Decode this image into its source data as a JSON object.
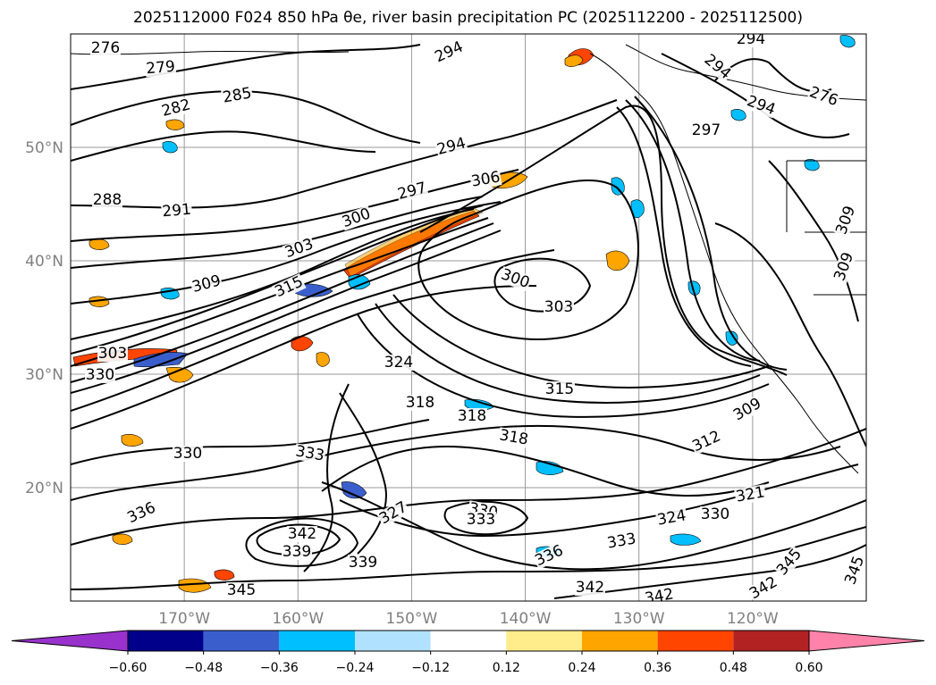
{
  "title": "2025112000 F024 850 hPa θe, river basin precipitation PC (2025112200 - 2025112500)",
  "map": {
    "projection": "PlateCarree",
    "extent": {
      "lon_min": -180,
      "lon_max": -110,
      "lat_min": 10,
      "lat_max": 60
    },
    "lat_labels": [
      "50°N",
      "40°N",
      "30°N",
      "20°N"
    ],
    "lat_values": [
      50,
      40,
      30,
      20
    ],
    "lon_labels": [
      "170°W",
      "160°W",
      "150°W",
      "140°W",
      "130°W",
      "120°W"
    ],
    "lon_values": [
      -170,
      -160,
      -150,
      -140,
      -130,
      -120
    ],
    "gridlines": true
  },
  "chart_data": {
    "type": "contour",
    "title": "2025112000 F024 850 hPa θe, river basin precipitation PC (2025112200 - 2025112500)",
    "contour_field": "850 hPa θe",
    "contour_interval": 3,
    "contour_labels": [
      276,
      279,
      282,
      285,
      288,
      291,
      294,
      297,
      300,
      303,
      306,
      309,
      312,
      315,
      318,
      321,
      324,
      327,
      330,
      333,
      336,
      339,
      342,
      345
    ],
    "fill_field": "river basin precipitation PC",
    "colorbar": {
      "orientation": "horizontal",
      "extend": "both",
      "levels": [
        -0.6,
        -0.48,
        -0.36,
        -0.24,
        -0.12,
        0.12,
        0.24,
        0.36,
        0.48,
        0.6
      ],
      "tick_labels": [
        "−0.60",
        "−0.48",
        "−0.36",
        "−0.24",
        "−0.12",
        "0.12",
        "0.24",
        "0.36",
        "0.48",
        "0.60"
      ],
      "colors": [
        "#9932CC",
        "#00008B",
        "#3A5FCD",
        "#00BFFF",
        "#B0E2FF",
        "#FFFFFF",
        "#FFEC8B",
        "#FFA500",
        "#FF4500",
        "#B22222",
        "#FF82AB"
      ]
    }
  }
}
